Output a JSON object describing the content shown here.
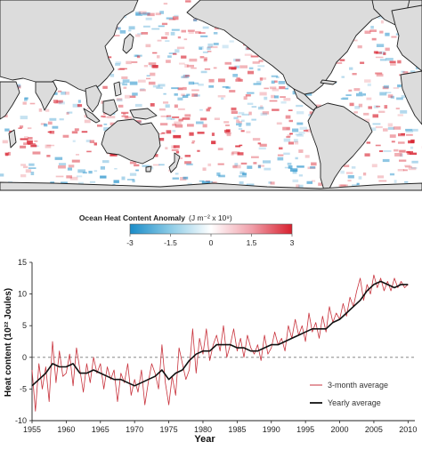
{
  "map": {
    "colorbar": {
      "title": "Ocean Heat Content Anomaly",
      "units": "(J m⁻² x 10⁹)",
      "ticks": [
        "-3",
        "-1.5",
        "0",
        "1.5",
        "3"
      ],
      "colors": {
        "negative": "#1a8cc8",
        "zero": "#ffffff",
        "positive": "#d8202e"
      }
    },
    "land_color": "#dcdcdc",
    "coast_color": "#222222"
  },
  "chart_data": {
    "type": "line",
    "xlabel": "Year",
    "ylabel": "Heat content (10²² Joules)",
    "xlim": [
      1955,
      2011
    ],
    "ylim": [
      -10,
      15
    ],
    "xticks": [
      1955,
      1960,
      1965,
      1970,
      1975,
      1980,
      1985,
      1990,
      1995,
      2000,
      2005,
      2010
    ],
    "yticks": [
      -10,
      -5,
      0,
      5,
      10,
      15
    ],
    "dashed_zero_line": true,
    "legend_position": "bottom-right",
    "series": [
      {
        "name": "3-month average",
        "color": "#c8323c",
        "x": [
          1955.0,
          1955.5,
          1956.0,
          1956.5,
          1957.0,
          1957.5,
          1958.0,
          1958.5,
          1959.0,
          1959.5,
          1960.0,
          1960.5,
          1961.0,
          1961.5,
          1962.0,
          1962.5,
          1963.0,
          1963.5,
          1964.0,
          1964.5,
          1965.0,
          1965.5,
          1966.0,
          1966.5,
          1967.0,
          1967.5,
          1968.0,
          1968.5,
          1969.0,
          1969.5,
          1970.0,
          1970.5,
          1971.0,
          1971.5,
          1972.0,
          1972.5,
          1973.0,
          1973.5,
          1974.0,
          1974.5,
          1975.0,
          1975.5,
          1976.0,
          1976.5,
          1977.0,
          1977.5,
          1978.0,
          1978.5,
          1979.0,
          1979.5,
          1980.0,
          1980.5,
          1981.0,
          1981.5,
          1982.0,
          1982.5,
          1983.0,
          1983.5,
          1984.0,
          1984.5,
          1985.0,
          1985.5,
          1986.0,
          1986.5,
          1987.0,
          1987.5,
          1988.0,
          1988.5,
          1989.0,
          1989.5,
          1990.0,
          1990.5,
          1991.0,
          1991.5,
          1992.0,
          1992.5,
          1993.0,
          1993.5,
          1994.0,
          1994.5,
          1995.0,
          1995.5,
          1996.0,
          1996.5,
          1997.0,
          1997.5,
          1998.0,
          1998.5,
          1999.0,
          1999.5,
          2000.0,
          2000.5,
          2001.0,
          2001.5,
          2002.0,
          2002.5,
          2003.0,
          2003.5,
          2004.0,
          2004.5,
          2005.0,
          2005.5,
          2006.0,
          2006.5,
          2007.0,
          2007.5,
          2008.0,
          2008.5,
          2009.0,
          2009.5,
          2010.0
        ],
        "values": [
          -2.0,
          -8.5,
          -1.0,
          -5.0,
          -1.5,
          -7.0,
          2.5,
          -4.0,
          1.0,
          -3.0,
          -2.5,
          0.5,
          -4.5,
          1.5,
          -2.0,
          -5.5,
          -1.0,
          -4.0,
          0.0,
          -2.5,
          -1.0,
          -5.0,
          -1.5,
          -3.5,
          -2.0,
          -7.0,
          -2.5,
          -4.0,
          -1.0,
          -6.0,
          -3.5,
          -5.5,
          -2.0,
          -7.5,
          -4.0,
          -1.0,
          -2.5,
          -5.0,
          2.0,
          -4.0,
          -7.5,
          -3.0,
          -6.0,
          1.5,
          -1.0,
          -3.5,
          -2.0,
          4.5,
          -2.5,
          3.0,
          0.5,
          4.5,
          -0.5,
          2.0,
          3.5,
          1.0,
          5.0,
          0.0,
          2.0,
          4.5,
          1.0,
          3.0,
          0.0,
          3.5,
          1.5,
          0.5,
          2.0,
          -0.5,
          3.5,
          0.5,
          1.5,
          4.0,
          2.0,
          3.0,
          1.0,
          5.0,
          3.0,
          6.0,
          3.5,
          5.0,
          2.5,
          7.0,
          4.0,
          5.5,
          3.0,
          6.5,
          4.0,
          8.0,
          5.5,
          7.0,
          6.0,
          8.5,
          6.5,
          9.5,
          8.0,
          10.5,
          12.5,
          9.0,
          11.5,
          10.0,
          13.0,
          11.0,
          12.5,
          10.5,
          12.0,
          10.5,
          12.5,
          11.0,
          12.0,
          11.0,
          11.5
        ]
      },
      {
        "name": "Yearly average",
        "color": "#111111",
        "x": [
          1955,
          1956,
          1957,
          1958,
          1959,
          1960,
          1961,
          1962,
          1963,
          1964,
          1965,
          1966,
          1967,
          1968,
          1969,
          1970,
          1971,
          1972,
          1973,
          1974,
          1975,
          1976,
          1977,
          1978,
          1979,
          1980,
          1981,
          1982,
          1983,
          1984,
          1985,
          1986,
          1987,
          1988,
          1989,
          1990,
          1991,
          1992,
          1993,
          1994,
          1995,
          1996,
          1997,
          1998,
          1999,
          2000,
          2001,
          2002,
          2003,
          2004,
          2005,
          2006,
          2007,
          2008,
          2009,
          2010
        ],
        "values": [
          -4.5,
          -3.5,
          -2.5,
          -1.0,
          -1.5,
          -1.5,
          -1.0,
          -2.5,
          -2.5,
          -2.0,
          -2.5,
          -3.0,
          -3.5,
          -3.5,
          -4.0,
          -4.5,
          -4.0,
          -3.5,
          -3.0,
          -2.0,
          -3.5,
          -2.5,
          -2.0,
          -0.5,
          0.5,
          1.0,
          1.0,
          2.0,
          2.0,
          2.0,
          1.5,
          1.5,
          1.0,
          1.0,
          1.5,
          2.0,
          2.0,
          2.5,
          3.0,
          3.5,
          4.0,
          4.5,
          4.5,
          4.5,
          5.5,
          6.0,
          7.0,
          8.0,
          9.0,
          10.5,
          11.5,
          12.0,
          11.5,
          11.0,
          11.5,
          11.5
        ]
      }
    ]
  }
}
